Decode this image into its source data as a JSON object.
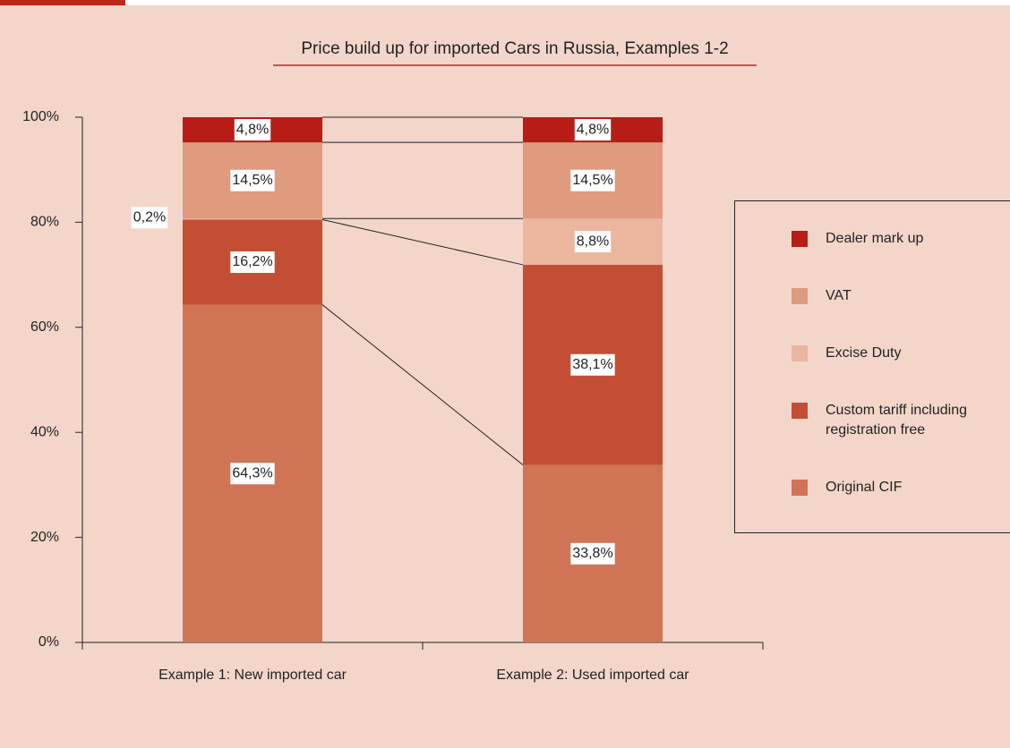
{
  "chart_data": {
    "type": "stacked_bar",
    "title": "Price build up for imported Cars in Russia, Examples 1-2",
    "categories": [
      "Example 1: New imported car",
      "Example 2: Used imported car"
    ],
    "series": [
      {
        "name": "Original CIF",
        "color": "#cf7455",
        "values": [
          64.3,
          33.8
        ],
        "value_labels": [
          "64,3%",
          "33,8%"
        ]
      },
      {
        "name": "Custom tariff including registration free",
        "color": "#c44e33",
        "values": [
          16.2,
          38.1
        ],
        "value_labels": [
          "16,2%",
          "38,1%"
        ]
      },
      {
        "name": "Excise Duty",
        "color": "#ebb59e",
        "values": [
          0.2,
          8.8
        ],
        "value_labels": [
          "0,2%",
          "8,8%"
        ]
      },
      {
        "name": "VAT",
        "color": "#e09a7e",
        "values": [
          14.5,
          14.5
        ],
        "value_labels": [
          "14,5%",
          "14,5%"
        ]
      },
      {
        "name": "Dealer mark up",
        "color": "#b71c17",
        "values": [
          4.8,
          4.8
        ],
        "value_labels": [
          "4,8%",
          "4,8%"
        ]
      }
    ],
    "ylim": [
      0,
      100
    ],
    "yticks": [
      {
        "value": 0,
        "label": "0%"
      },
      {
        "value": 20,
        "label": "20%"
      },
      {
        "value": 40,
        "label": "40%"
      },
      {
        "value": 60,
        "label": "60%"
      },
      {
        "value": 80,
        "label": "80%"
      },
      {
        "value": 100,
        "label": "100%"
      }
    ],
    "legend": "right"
  }
}
